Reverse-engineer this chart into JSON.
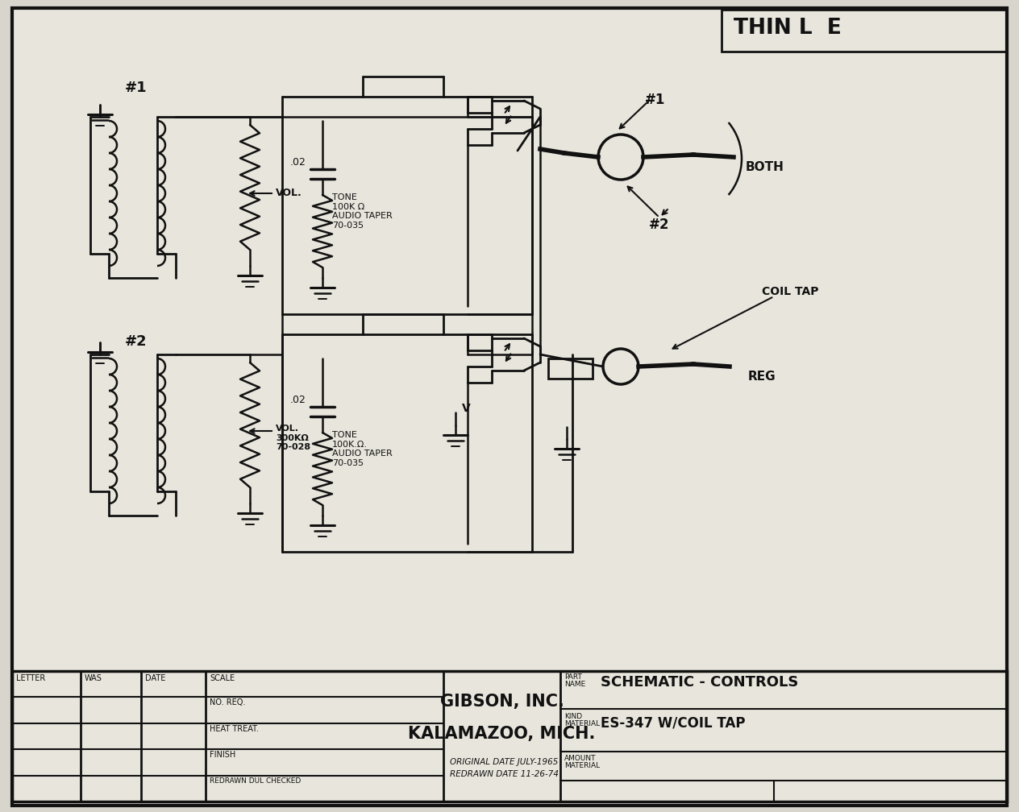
{
  "bg_color": "#d8d5cc",
  "paper_color": "#e8e5dc",
  "line_color": "#111111",
  "title_box_text": "THIN L  E",
  "company": "GIBSON, INC.",
  "city": "KALAMAZOO, MICH.",
  "orig_date": "ORIGINAL DATE JULY-1965",
  "redrawn_date": "REDRAWN DATE 11-26-74",
  "part_name": "SCHEMATIC - CONTROLS",
  "kind_material": "ES-347 W/COIL TAP",
  "letter_label": "LETTER",
  "was_label": "WAS",
  "date_label": "DATE",
  "scale_label": "SCALE",
  "no_req_label": "NO. REQ.",
  "heat_treat_label": "HEAT TREAT.",
  "finish_label": "FINISH",
  "redrawn_label": "REDRAWN DUL CHECKED",
  "label_pickup1": "#1",
  "label_pickup2": "#2",
  "label_vol1": "VOL.",
  "label_vol2": "VOL.\n300KΩ\n70-028",
  "label_tone1": "TONE\n100K Ω\nAUDIO TAPER\n70-035",
  "label_tone2": "TONE\n100K.Ω.\nAUDIO TAPER\n70-035",
  "label_cap1": ".02",
  "label_cap2": ".02",
  "label_both": "BOTH",
  "label_coil_tap": "COIL TAP",
  "label_reg": "REG",
  "label_n1": "#1",
  "label_n2": "#2"
}
